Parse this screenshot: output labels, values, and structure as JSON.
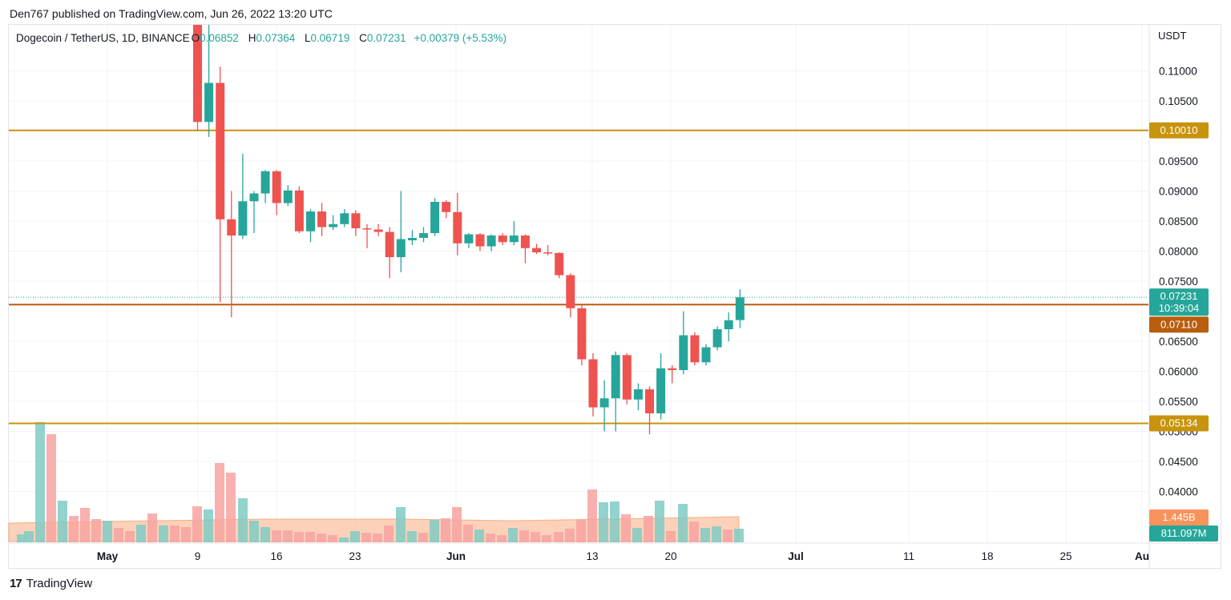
{
  "header": {
    "published": "Den767 published on TradingView.com, Jun 26, 2022 13:20 UTC"
  },
  "legend": {
    "symbol": "Dogecoin / TetherUS, 1D, BINANCE",
    "open_label": "O",
    "open": "0.06852",
    "high_label": "H",
    "high": "0.07364",
    "low_label": "L",
    "low": "0.06719",
    "close_label": "C",
    "close": "0.07231",
    "change": "+0.00379 (+5.53%)"
  },
  "unit": "USDT",
  "brand": {
    "logo": "17",
    "name": "TradingView"
  },
  "colors": {
    "up": "#26a69a",
    "down": "#ef5350",
    "level": "#c8930d",
    "level_mid": "#b95d0e",
    "volume_ma": "#f7ad7f"
  },
  "chart_data": {
    "type": "candlestick",
    "y_ticks": [
      "0.11000",
      "0.10500",
      "0.09500",
      "0.09000",
      "0.08500",
      "0.08000",
      "0.07500",
      "0.06500",
      "0.06000",
      "0.05500",
      "0.05000",
      "0.04500",
      "0.04000"
    ],
    "x_ticks": [
      "May",
      "9",
      "16",
      "23",
      "Jun",
      "13",
      "20",
      "Jul",
      "11",
      "18",
      "25",
      "Au"
    ],
    "ylim": [
      0.037,
      0.1133
    ],
    "horizontal_levels": [
      {
        "label": "0.10010",
        "value": 0.1001,
        "color": "#c8930d"
      },
      {
        "label": "0.07110",
        "value": 0.0711,
        "color": "#b95d0e"
      },
      {
        "label": "0.05134",
        "value": 0.05134,
        "color": "#c8930d"
      }
    ],
    "last_price": {
      "label": "0.07231",
      "countdown": "10:39:04",
      "value": 0.07231
    },
    "volume_tags": [
      {
        "label": "1.445B",
        "color": "#f7935b"
      },
      {
        "label": "811.097M",
        "color": "#26a69a"
      }
    ],
    "candles": [
      {
        "date": "2022-05-09",
        "o": 0.1315,
        "h": 0.135,
        "l": 0.1,
        "c": 0.1015
      },
      {
        "date": "2022-05-10",
        "o": 0.1015,
        "h": 0.126,
        "l": 0.099,
        "c": 0.108
      },
      {
        "date": "2022-05-11",
        "o": 0.108,
        "h": 0.1107,
        "l": 0.0715,
        "c": 0.0853
      },
      {
        "date": "2022-05-12",
        "o": 0.0853,
        "h": 0.09,
        "l": 0.069,
        "c": 0.0826
      },
      {
        "date": "2022-05-13",
        "o": 0.0826,
        "h": 0.0962,
        "l": 0.082,
        "c": 0.0883
      },
      {
        "date": "2022-05-14",
        "o": 0.0883,
        "h": 0.09,
        "l": 0.083,
        "c": 0.0896
      },
      {
        "date": "2022-05-15",
        "o": 0.0896,
        "h": 0.0935,
        "l": 0.088,
        "c": 0.0933
      },
      {
        "date": "2022-05-16",
        "o": 0.0933,
        "h": 0.0935,
        "l": 0.086,
        "c": 0.088
      },
      {
        "date": "2022-05-17",
        "o": 0.088,
        "h": 0.091,
        "l": 0.0875,
        "c": 0.0901
      },
      {
        "date": "2022-05-18",
        "o": 0.0901,
        "h": 0.0908,
        "l": 0.083,
        "c": 0.0833
      },
      {
        "date": "2022-05-19",
        "o": 0.0833,
        "h": 0.087,
        "l": 0.0815,
        "c": 0.0866
      },
      {
        "date": "2022-05-20",
        "o": 0.0866,
        "h": 0.088,
        "l": 0.0825,
        "c": 0.084
      },
      {
        "date": "2022-05-21",
        "o": 0.084,
        "h": 0.086,
        "l": 0.0835,
        "c": 0.0845
      },
      {
        "date": "2022-05-22",
        "o": 0.0845,
        "h": 0.087,
        "l": 0.084,
        "c": 0.0863
      },
      {
        "date": "2022-05-23",
        "o": 0.0863,
        "h": 0.0868,
        "l": 0.0825,
        "c": 0.0838
      },
      {
        "date": "2022-05-24",
        "o": 0.0838,
        "h": 0.0845,
        "l": 0.0805,
        "c": 0.0836
      },
      {
        "date": "2022-05-25",
        "o": 0.0836,
        "h": 0.0845,
        "l": 0.0825,
        "c": 0.0832
      },
      {
        "date": "2022-05-26",
        "o": 0.0832,
        "h": 0.084,
        "l": 0.0755,
        "c": 0.079
      },
      {
        "date": "2022-05-27",
        "o": 0.079,
        "h": 0.09,
        "l": 0.0765,
        "c": 0.082
      },
      {
        "date": "2022-05-28",
        "o": 0.0818,
        "h": 0.0835,
        "l": 0.081,
        "c": 0.0822
      },
      {
        "date": "2022-05-29",
        "o": 0.0822,
        "h": 0.084,
        "l": 0.0815,
        "c": 0.083
      },
      {
        "date": "2022-05-30",
        "o": 0.083,
        "h": 0.0888,
        "l": 0.0825,
        "c": 0.0882
      },
      {
        "date": "2022-05-31",
        "o": 0.0882,
        "h": 0.0885,
        "l": 0.0855,
        "c": 0.0865
      },
      {
        "date": "2022-06-01",
        "o": 0.0865,
        "h": 0.0897,
        "l": 0.0793,
        "c": 0.0813
      },
      {
        "date": "2022-06-02",
        "o": 0.0813,
        "h": 0.083,
        "l": 0.0805,
        "c": 0.0828
      },
      {
        "date": "2022-06-03",
        "o": 0.0828,
        "h": 0.083,
        "l": 0.08,
        "c": 0.0808
      },
      {
        "date": "2022-06-04",
        "o": 0.0808,
        "h": 0.0828,
        "l": 0.08,
        "c": 0.0826
      },
      {
        "date": "2022-06-05",
        "o": 0.0826,
        "h": 0.083,
        "l": 0.081,
        "c": 0.0815
      },
      {
        "date": "2022-06-06",
        "o": 0.0815,
        "h": 0.085,
        "l": 0.081,
        "c": 0.0826
      },
      {
        "date": "2022-06-07",
        "o": 0.0826,
        "h": 0.0828,
        "l": 0.078,
        "c": 0.0805
      },
      {
        "date": "2022-06-08",
        "o": 0.0805,
        "h": 0.0812,
        "l": 0.0795,
        "c": 0.0798
      },
      {
        "date": "2022-06-09",
        "o": 0.0798,
        "h": 0.081,
        "l": 0.0793,
        "c": 0.0797
      },
      {
        "date": "2022-06-10",
        "o": 0.0797,
        "h": 0.0798,
        "l": 0.0755,
        "c": 0.076
      },
      {
        "date": "2022-06-11",
        "o": 0.076,
        "h": 0.0763,
        "l": 0.069,
        "c": 0.0705
      },
      {
        "date": "2022-06-12",
        "o": 0.0705,
        "h": 0.071,
        "l": 0.061,
        "c": 0.062
      },
      {
        "date": "2022-06-13",
        "o": 0.062,
        "h": 0.063,
        "l": 0.0525,
        "c": 0.054
      },
      {
        "date": "2022-06-14",
        "o": 0.054,
        "h": 0.0585,
        "l": 0.05,
        "c": 0.0555
      },
      {
        "date": "2022-06-15",
        "o": 0.0555,
        "h": 0.0633,
        "l": 0.05,
        "c": 0.0627
      },
      {
        "date": "2022-06-16",
        "o": 0.0627,
        "h": 0.063,
        "l": 0.0545,
        "c": 0.0553
      },
      {
        "date": "2022-06-17",
        "o": 0.0553,
        "h": 0.058,
        "l": 0.0535,
        "c": 0.057
      },
      {
        "date": "2022-06-18",
        "o": 0.057,
        "h": 0.0575,
        "l": 0.0495,
        "c": 0.053
      },
      {
        "date": "2022-06-19",
        "o": 0.053,
        "h": 0.063,
        "l": 0.052,
        "c": 0.0605
      },
      {
        "date": "2022-06-20",
        "o": 0.0605,
        "h": 0.061,
        "l": 0.058,
        "c": 0.0602
      },
      {
        "date": "2022-06-21",
        "o": 0.0602,
        "h": 0.07,
        "l": 0.0595,
        "c": 0.066
      },
      {
        "date": "2022-06-22",
        "o": 0.066,
        "h": 0.0665,
        "l": 0.061,
        "c": 0.0615
      },
      {
        "date": "2022-06-23",
        "o": 0.0615,
        "h": 0.0645,
        "l": 0.061,
        "c": 0.064
      },
      {
        "date": "2022-06-24",
        "o": 0.064,
        "h": 0.0675,
        "l": 0.0635,
        "c": 0.067
      },
      {
        "date": "2022-06-25",
        "o": 0.067,
        "h": 0.0698,
        "l": 0.065,
        "c": 0.0685
      },
      {
        "date": "2022-06-26",
        "o": 0.06852,
        "h": 0.07364,
        "l": 0.06719,
        "c": 0.07231
      }
    ],
    "volume_bars": [
      {
        "x": 27,
        "h": 10,
        "up": true
      },
      {
        "x": 36,
        "h": 14,
        "up": true
      },
      {
        "x": 50,
        "h": 150,
        "up": true
      },
      {
        "x": 64,
        "h": 135,
        "up": false
      },
      {
        "x": 78,
        "h": 52,
        "up": true
      },
      {
        "x": 92,
        "h": 33,
        "up": false
      },
      {
        "x": 106,
        "h": 43,
        "up": false
      },
      {
        "x": 120,
        "h": 29,
        "up": false
      },
      {
        "x": 134,
        "h": 27,
        "up": true
      },
      {
        "x": 148,
        "h": 18,
        "up": false
      },
      {
        "x": 162,
        "h": 14,
        "up": false
      },
      {
        "x": 176,
        "h": 22,
        "up": true
      },
      {
        "x": 190,
        "h": 36,
        "up": false
      },
      {
        "x": 204,
        "h": 21,
        "up": true
      },
      {
        "x": 218,
        "h": 21,
        "up": false
      },
      {
        "x": 232,
        "h": 19,
        "up": false
      },
      {
        "x": 246,
        "h": 45,
        "up": false
      },
      {
        "x": 260,
        "h": 41,
        "up": true
      },
      {
        "x": 274,
        "h": 99,
        "up": false
      },
      {
        "x": 288,
        "h": 87,
        "up": false
      },
      {
        "x": 303,
        "h": 55,
        "up": true
      },
      {
        "x": 317,
        "h": 27,
        "up": true
      },
      {
        "x": 331,
        "h": 19,
        "up": true
      },
      {
        "x": 345,
        "h": 15,
        "up": false
      },
      {
        "x": 359,
        "h": 15,
        "up": false
      },
      {
        "x": 373,
        "h": 13,
        "up": false
      },
      {
        "x": 387,
        "h": 13,
        "up": false
      },
      {
        "x": 401,
        "h": 11,
        "up": false
      },
      {
        "x": 415,
        "h": 9,
        "up": false
      },
      {
        "x": 429,
        "h": 6,
        "up": true
      },
      {
        "x": 443,
        "h": 14,
        "up": true
      },
      {
        "x": 457,
        "h": 12,
        "up": false
      },
      {
        "x": 471,
        "h": 11,
        "up": false
      },
      {
        "x": 485,
        "h": 21,
        "up": false
      },
      {
        "x": 500,
        "h": 44,
        "up": true
      },
      {
        "x": 514,
        "h": 14,
        "up": true
      },
      {
        "x": 528,
        "h": 12,
        "up": false
      },
      {
        "x": 542,
        "h": 28,
        "up": true
      },
      {
        "x": 556,
        "h": 30,
        "up": false
      },
      {
        "x": 570,
        "h": 44,
        "up": false
      },
      {
        "x": 584,
        "h": 22,
        "up": false
      },
      {
        "x": 598,
        "h": 16,
        "up": true
      },
      {
        "x": 612,
        "h": 11,
        "up": false
      },
      {
        "x": 626,
        "h": 9,
        "up": false
      },
      {
        "x": 640,
        "h": 18,
        "up": true
      },
      {
        "x": 654,
        "h": 15,
        "up": false
      },
      {
        "x": 668,
        "h": 13,
        "up": false
      },
      {
        "x": 682,
        "h": 9,
        "up": false
      },
      {
        "x": 697,
        "h": 13,
        "up": false
      },
      {
        "x": 711,
        "h": 17,
        "up": false
      },
      {
        "x": 725,
        "h": 28,
        "up": false
      },
      {
        "x": 739,
        "h": 66,
        "up": false
      },
      {
        "x": 753,
        "h": 50,
        "up": true
      },
      {
        "x": 767,
        "h": 51,
        "up": true
      },
      {
        "x": 781,
        "h": 35,
        "up": false
      },
      {
        "x": 795,
        "h": 18,
        "up": true
      },
      {
        "x": 809,
        "h": 33,
        "up": false
      },
      {
        "x": 823,
        "h": 52,
        "up": true
      },
      {
        "x": 837,
        "h": 14,
        "up": false
      },
      {
        "x": 852,
        "h": 48,
        "up": true
      },
      {
        "x": 866,
        "h": 26,
        "up": false
      },
      {
        "x": 880,
        "h": 18,
        "up": true
      },
      {
        "x": 894,
        "h": 20,
        "up": true
      },
      {
        "x": 908,
        "h": 16,
        "up": false
      },
      {
        "x": 922,
        "h": 17,
        "up": true
      }
    ]
  }
}
